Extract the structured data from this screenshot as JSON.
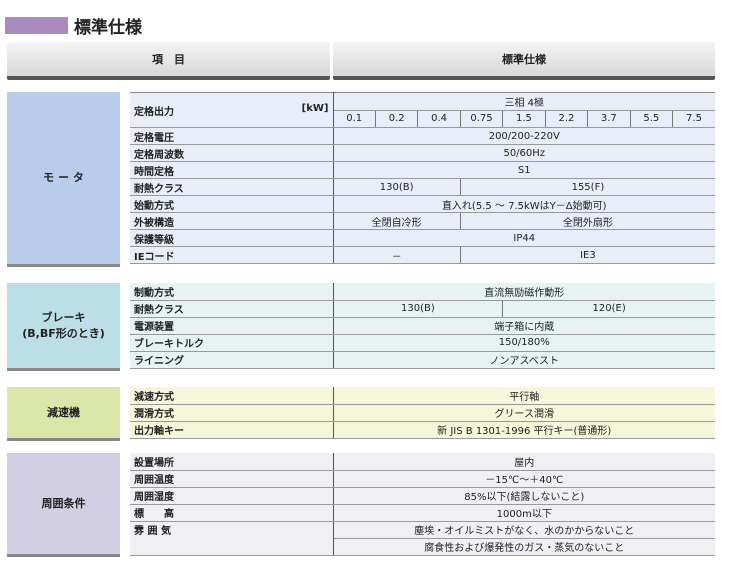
{
  "title": "標準仕様",
  "header": {
    "item": "項　目",
    "spec": "標準仕様"
  },
  "colors": {
    "title_bar": "#a98bbf",
    "motor": "#b9cdea",
    "brake": "#bcdfe7",
    "reducer": "#dbe7a9",
    "ambient": "#d2cfe4"
  },
  "motor": {
    "label": "モ ー タ",
    "output_label": "定格出力",
    "output_unit": "[kW]",
    "output_phase": "三相 4極",
    "outputs": [
      "0.1",
      "0.2",
      "0.4",
      "0.75",
      "1.5",
      "2.2",
      "3.7",
      "5.5",
      "7.5"
    ],
    "rows": [
      {
        "k": "定格電圧",
        "v": [
          "200/200-220V"
        ]
      },
      {
        "k": "定格周波数",
        "v": [
          "50/60Hz"
        ]
      },
      {
        "k": "時間定格",
        "v": [
          "S1"
        ]
      },
      {
        "k": "耐熱クラス",
        "v": [
          "130(B)",
          "155(F)"
        ]
      },
      {
        "k": "始動方式",
        "v": [
          "直入れ(5.5 ～ 7.5kWはY－Δ始動可)"
        ]
      },
      {
        "k": "外被構造",
        "v": [
          "全閉自冷形",
          "全閉外扇形"
        ]
      },
      {
        "k": "保護等級",
        "v": [
          "IP44"
        ]
      },
      {
        "k": "IEコード",
        "v": [
          "－",
          "IE3"
        ]
      }
    ]
  },
  "brake": {
    "label": "ブレーキ\n(B,BF形のとき)",
    "rows": [
      {
        "k": "制動方式",
        "v": [
          "直流無励磁作動形"
        ]
      },
      {
        "k": "耐熱クラス",
        "v": [
          "130(B)",
          "120(E)"
        ]
      },
      {
        "k": "電源装置",
        "v": [
          "端子箱に内蔵"
        ]
      },
      {
        "k": "ブレーキトルク",
        "v": [
          "150/180%"
        ]
      },
      {
        "k": "ライニング",
        "v": [
          "ノンアスベスト"
        ]
      }
    ]
  },
  "reducer": {
    "label": "減速機",
    "rows": [
      {
        "k": "減速方式",
        "v": [
          "平行軸"
        ]
      },
      {
        "k": "潤滑方式",
        "v": [
          "グリース潤滑"
        ]
      },
      {
        "k": "出力軸キー",
        "v": [
          "新 JIS B 1301-1996 平行キー(普通形)"
        ]
      }
    ]
  },
  "ambient": {
    "label": "周囲条件",
    "rows": [
      {
        "k": "設置場所",
        "v": [
          "屋内"
        ]
      },
      {
        "k": "周囲温度",
        "v": [
          "－15℃～＋40℃"
        ]
      },
      {
        "k": "周囲湿度",
        "v": [
          "85%以下(結露しないこと)"
        ]
      },
      {
        "k": "標　　高",
        "v": [
          "1000m以下"
        ]
      },
      {
        "k": "雰 囲 気",
        "v": [
          "塵埃・オイルミストがなく、水のかからないこと"
        ]
      },
      {
        "k": "",
        "v": [
          "腐食性および爆発性のガス・蒸気のないこと"
        ]
      }
    ]
  }
}
